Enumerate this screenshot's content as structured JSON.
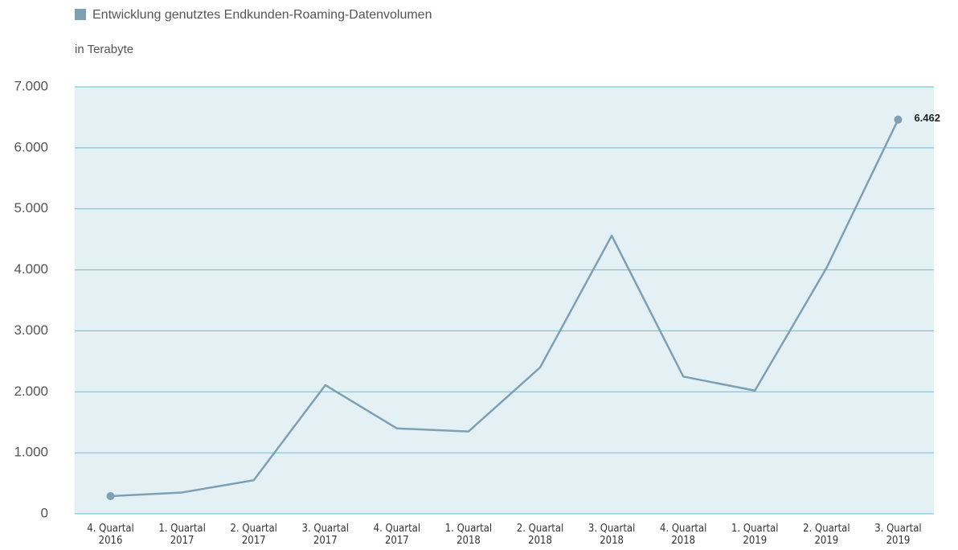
{
  "chart_data": {
    "type": "line",
    "legend_title": "Entwicklung genutztes Endkunden-Roaming-Datenvolumen",
    "subtitle": "in Terabyte",
    "categories": [
      "4. Quartal 2016",
      "1. Quartal 2017",
      "2. Quartal 2017",
      "3. Quartal 2017",
      "4. Quartal 2017",
      "1. Quartal 2018",
      "2. Quartal 2018",
      "3. Quartal 2018",
      "4. Quartal 2018",
      "1. Quartal 2019",
      "2. Quartal 2019",
      "3. Quartal 2019"
    ],
    "series": [
      {
        "name": "Entwicklung genutztes Endkunden-Roaming-Datenvolumen",
        "color": "#7f9fb2",
        "values": [
          290,
          350,
          550,
          2110,
          1400,
          1350,
          2400,
          4560,
          2250,
          2020,
          4030,
          6462
        ],
        "value_labels": [
          null,
          null,
          null,
          null,
          null,
          null,
          null,
          null,
          null,
          null,
          null,
          "6.462"
        ]
      }
    ],
    "ylim": [
      0,
      7000
    ],
    "yticks": [
      0,
      {
        "value": 1000,
        "label": "1.000"
      },
      {
        "value": 2000,
        "label": "2.000"
      },
      {
        "value": 3000,
        "label": "3.000"
      },
      {
        "value": 4000,
        "label": "4.000"
      },
      {
        "value": 5000,
        "label": "5.000"
      },
      {
        "value": 6000,
        "label": "6.000"
      },
      {
        "value": 7000,
        "label": "7.000"
      }
    ],
    "grid": true,
    "plot_background": "#e3f1f5",
    "grid_color": "#5ec4d6"
  }
}
